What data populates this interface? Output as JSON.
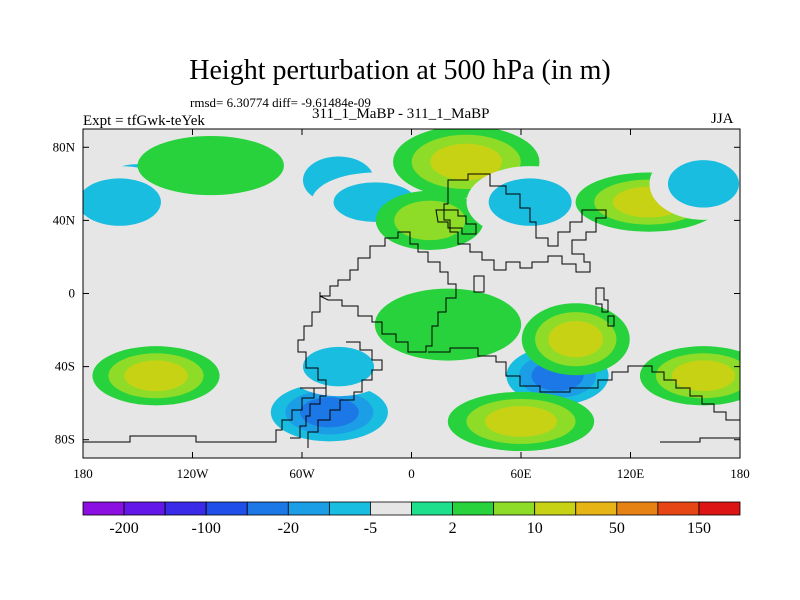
{
  "title": "Height perturbation at 500 hPa (in m)",
  "stats_text": "rmsd= 6.30774 diff= -9.61484e-09",
  "left_subtitle": "Expt = tfGwk-teYek",
  "center_subtitle": "311_1_MaBP - 311_1_MaBP",
  "right_subtitle": "JJA",
  "colors": {
    "palette": [
      "#8a0fe0",
      "#6317e8",
      "#3a2be8",
      "#1f4fe8",
      "#1c78e6",
      "#1c9ee6",
      "#19bde0",
      "#e6e6e6",
      "#1ee08c",
      "#28d23c",
      "#8edc28",
      "#c8d214",
      "#e6b414",
      "#e68214",
      "#e64614",
      "#dc1414"
    ],
    "coast": "#000000"
  },
  "chart_data": {
    "type": "contour-map",
    "variable": "Height perturbation at 500 hPa",
    "units": "m",
    "season": "JJA",
    "projection": "cylindrical equidistant",
    "lon_range": [
      -180,
      180
    ],
    "lat_range": [
      -90,
      90
    ],
    "x_ticks": [
      {
        "value": -180,
        "label": "180"
      },
      {
        "value": -120,
        "label": "120W"
      },
      {
        "value": -60,
        "label": "60W"
      },
      {
        "value": 0,
        "label": "0"
      },
      {
        "value": 60,
        "label": "60E"
      },
      {
        "value": 120,
        "label": "120E"
      },
      {
        "value": 180,
        "label": "180"
      }
    ],
    "y_ticks": [
      {
        "value": 80,
        "label": "80N"
      },
      {
        "value": 40,
        "label": "40N"
      },
      {
        "value": 0,
        "label": "0"
      },
      {
        "value": -40,
        "label": "40S"
      },
      {
        "value": -80,
        "label": "80S"
      }
    ],
    "colorbar": {
      "levels": [
        -200,
        -150,
        -100,
        -50,
        -20,
        -10,
        -5,
        -2,
        2,
        5,
        10,
        20,
        50,
        100,
        150
      ],
      "labeled": [
        "-200",
        "-100",
        "-20",
        "-5",
        "2",
        "10",
        "50",
        "150"
      ]
    },
    "features": [
      {
        "lon": -150,
        "lat": 60,
        "value": -5
      },
      {
        "lon": -160,
        "lat": 50,
        "value": -5
      },
      {
        "lon": -110,
        "lat": 70,
        "value": 2
      },
      {
        "lon": -40,
        "lat": 62,
        "value": -5
      },
      {
        "lon": -20,
        "lat": 50,
        "value": -5
      },
      {
        "lon": 30,
        "lat": 72,
        "value": 10
      },
      {
        "lon": 10,
        "lat": 40,
        "value": 5
      },
      {
        "lon": 65,
        "lat": 50,
        "value": -5
      },
      {
        "lon": 130,
        "lat": 50,
        "value": 10
      },
      {
        "lon": 160,
        "lat": 60,
        "value": -5
      },
      {
        "lon": -140,
        "lat": -45,
        "value": 15
      },
      {
        "lon": -45,
        "lat": -65,
        "value": -20
      },
      {
        "lon": -40,
        "lat": -40,
        "value": -5
      },
      {
        "lon": 80,
        "lat": -45,
        "value": -20
      },
      {
        "lon": 60,
        "lat": -70,
        "value": 15
      },
      {
        "lon": 90,
        "lat": -25,
        "value": 10
      },
      {
        "lon": 160,
        "lat": -45,
        "value": 15
      },
      {
        "lon": 20,
        "lat": -17,
        "value": 2
      }
    ]
  }
}
